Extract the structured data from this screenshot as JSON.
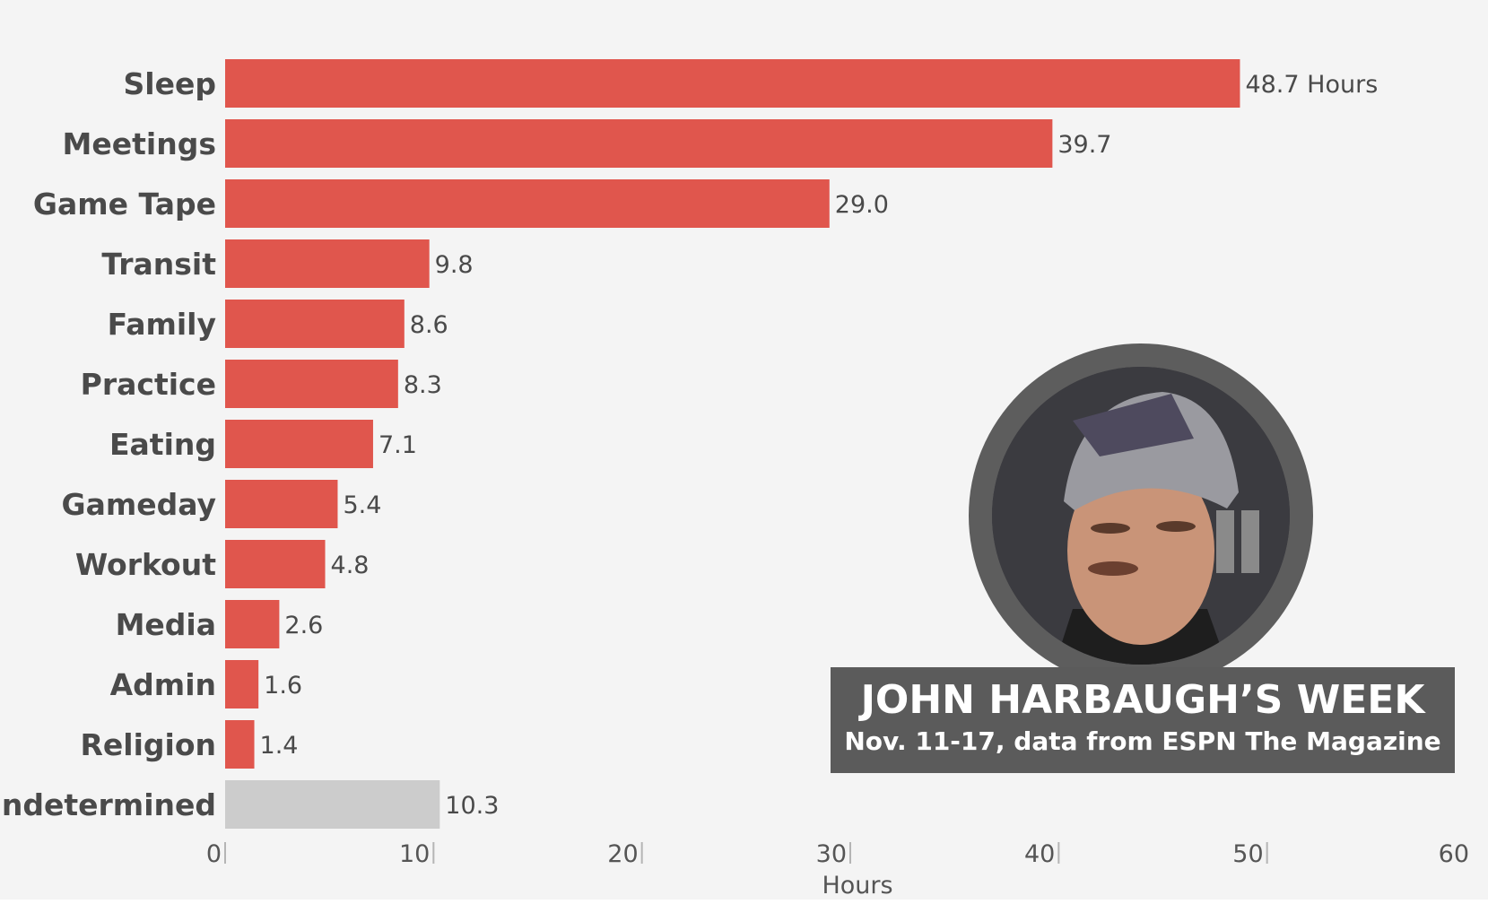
{
  "colors": {
    "background": "#f4f4f4",
    "bar": "#e0564d",
    "bar_undetermined": "#cccccc",
    "title_box": "#5b5b5b",
    "portrait_ring": "#5d5d5d"
  },
  "title": "JOHN HARBAUGH’S WEEK",
  "subtitle": "Nov. 11-17, data from ESPN The Magazine",
  "portrait": {
    "icon": "person-photo"
  },
  "chart_data": {
    "type": "bar",
    "orientation": "horizontal",
    "categories": [
      "Sleep",
      "Meetings",
      "Game Tape",
      "Transit",
      "Family",
      "Practice",
      "Eating",
      "Gameday",
      "Workout",
      "Media",
      "Admin",
      "Religion",
      "Undetermined"
    ],
    "values": [
      48.7,
      39.7,
      29.0,
      9.8,
      8.6,
      8.3,
      7.1,
      5.4,
      4.8,
      2.6,
      1.6,
      1.4,
      10.3
    ],
    "value_labels": [
      "48.7 Hours",
      "39.7",
      "29.0",
      "9.8",
      "8.6",
      "8.3",
      "7.1",
      "5.4",
      "4.8",
      "2.6",
      "1.6",
      "1.4",
      "10.3"
    ],
    "highlight_gray": [
      "Undetermined"
    ],
    "xlabel": "Hours",
    "ylabel": "",
    "xlim": [
      0,
      60
    ],
    "xticks": [
      0,
      10,
      20,
      30,
      40,
      50,
      60
    ],
    "grid": false,
    "legend": "none"
  }
}
